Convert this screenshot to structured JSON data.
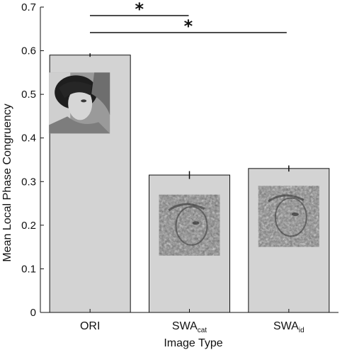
{
  "chart_data": {
    "type": "bar",
    "categories": [
      {
        "main": "ORI",
        "sub": ""
      },
      {
        "main": "SWA",
        "sub": "cat"
      },
      {
        "main": "SWA",
        "sub": "id"
      }
    ],
    "values": [
      0.59,
      0.315,
      0.33
    ],
    "errors": [
      0.004,
      0.009,
      0.007
    ],
    "xlabel": "Image Type",
    "ylabel": "Mean Local Phase Congruency",
    "ylim": [
      0,
      0.7
    ],
    "yticks": [
      0,
      0.1,
      0.2,
      0.3,
      0.4,
      0.5,
      0.6,
      0.7
    ],
    "ytick_labels": [
      "0",
      "0.1",
      "0.2",
      "0.3",
      "0.4",
      "0.5",
      "0.6",
      "0.7"
    ],
    "bar_color": "#d3d3d3",
    "significance": [
      {
        "from": 0,
        "to": 1,
        "label": "*"
      },
      {
        "from": 0,
        "to": 2,
        "label": "*"
      }
    ],
    "bar_images": [
      "face-photo-original",
      "face-photo-swapped-category",
      "face-photo-swapped-identity"
    ]
  }
}
